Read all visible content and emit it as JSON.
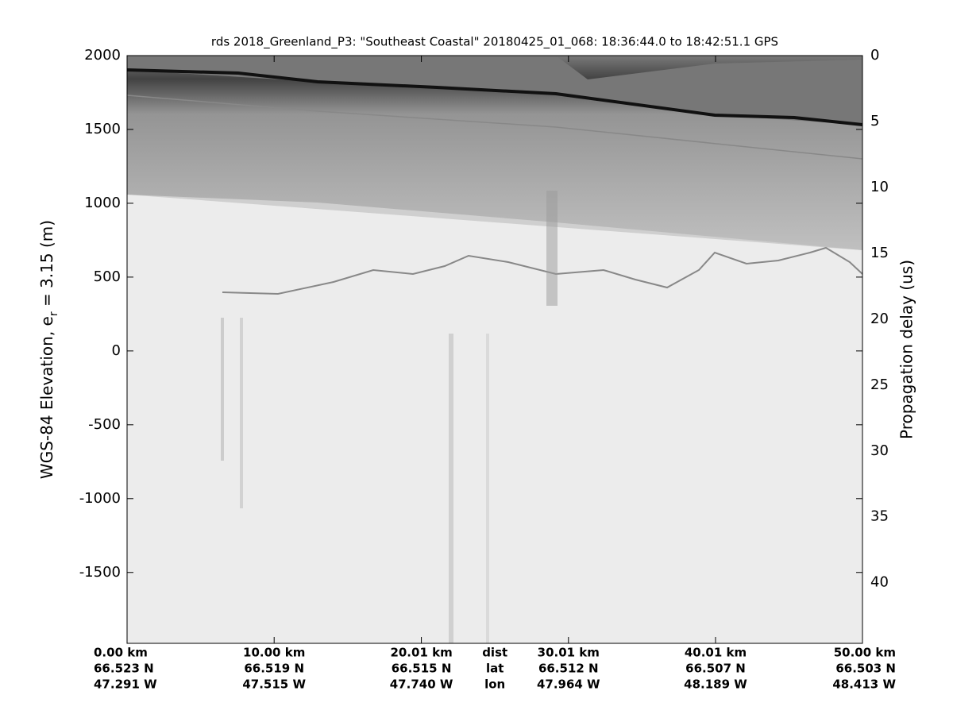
{
  "chart_data": {
    "type": "image",
    "title": "rds 2018_Greenland_P3: \"Southeast Coastal\"  20180425_01_068: 18:36:44.0 to 18:42:51.1 GPS",
    "ylabel": [
      "WGS-84 Elevation, e",
      "r",
      " = 3.15 (m)"
    ],
    "y2label": "Propagation delay (us)",
    "xlim": [
      0,
      50
    ],
    "xticks": [
      {
        "value": 0,
        "label": "0.00 km"
      },
      {
        "value": 10,
        "label": "10.00 km"
      },
      {
        "value": 20.01,
        "label": "20.01 km"
      },
      {
        "value": 30.01,
        "label": "30.01 km"
      },
      {
        "value": 40.01,
        "label": "40.01 km"
      },
      {
        "value": 50,
        "label": "50.00 km"
      }
    ],
    "lat_labels": [
      "66.523 N",
      "66.519 N",
      "66.515 N",
      "66.512 N",
      "66.507 N",
      "66.503 N"
    ],
    "lon_labels": [
      "47.291 W",
      "47.515 W",
      "47.740 W",
      "47.964 W",
      "48.189 W",
      "48.413 W"
    ],
    "row_names": [
      "dist",
      "lat",
      "lon"
    ],
    "ylim": [
      -1980,
      2000
    ],
    "yticks": [
      2000,
      1500,
      1000,
      500,
      0,
      -500,
      -1000,
      -1500
    ],
    "y2lim": [
      44.6,
      0
    ],
    "y2ticks": [
      0,
      5,
      10,
      15,
      20,
      25,
      30,
      35,
      40
    ]
  }
}
